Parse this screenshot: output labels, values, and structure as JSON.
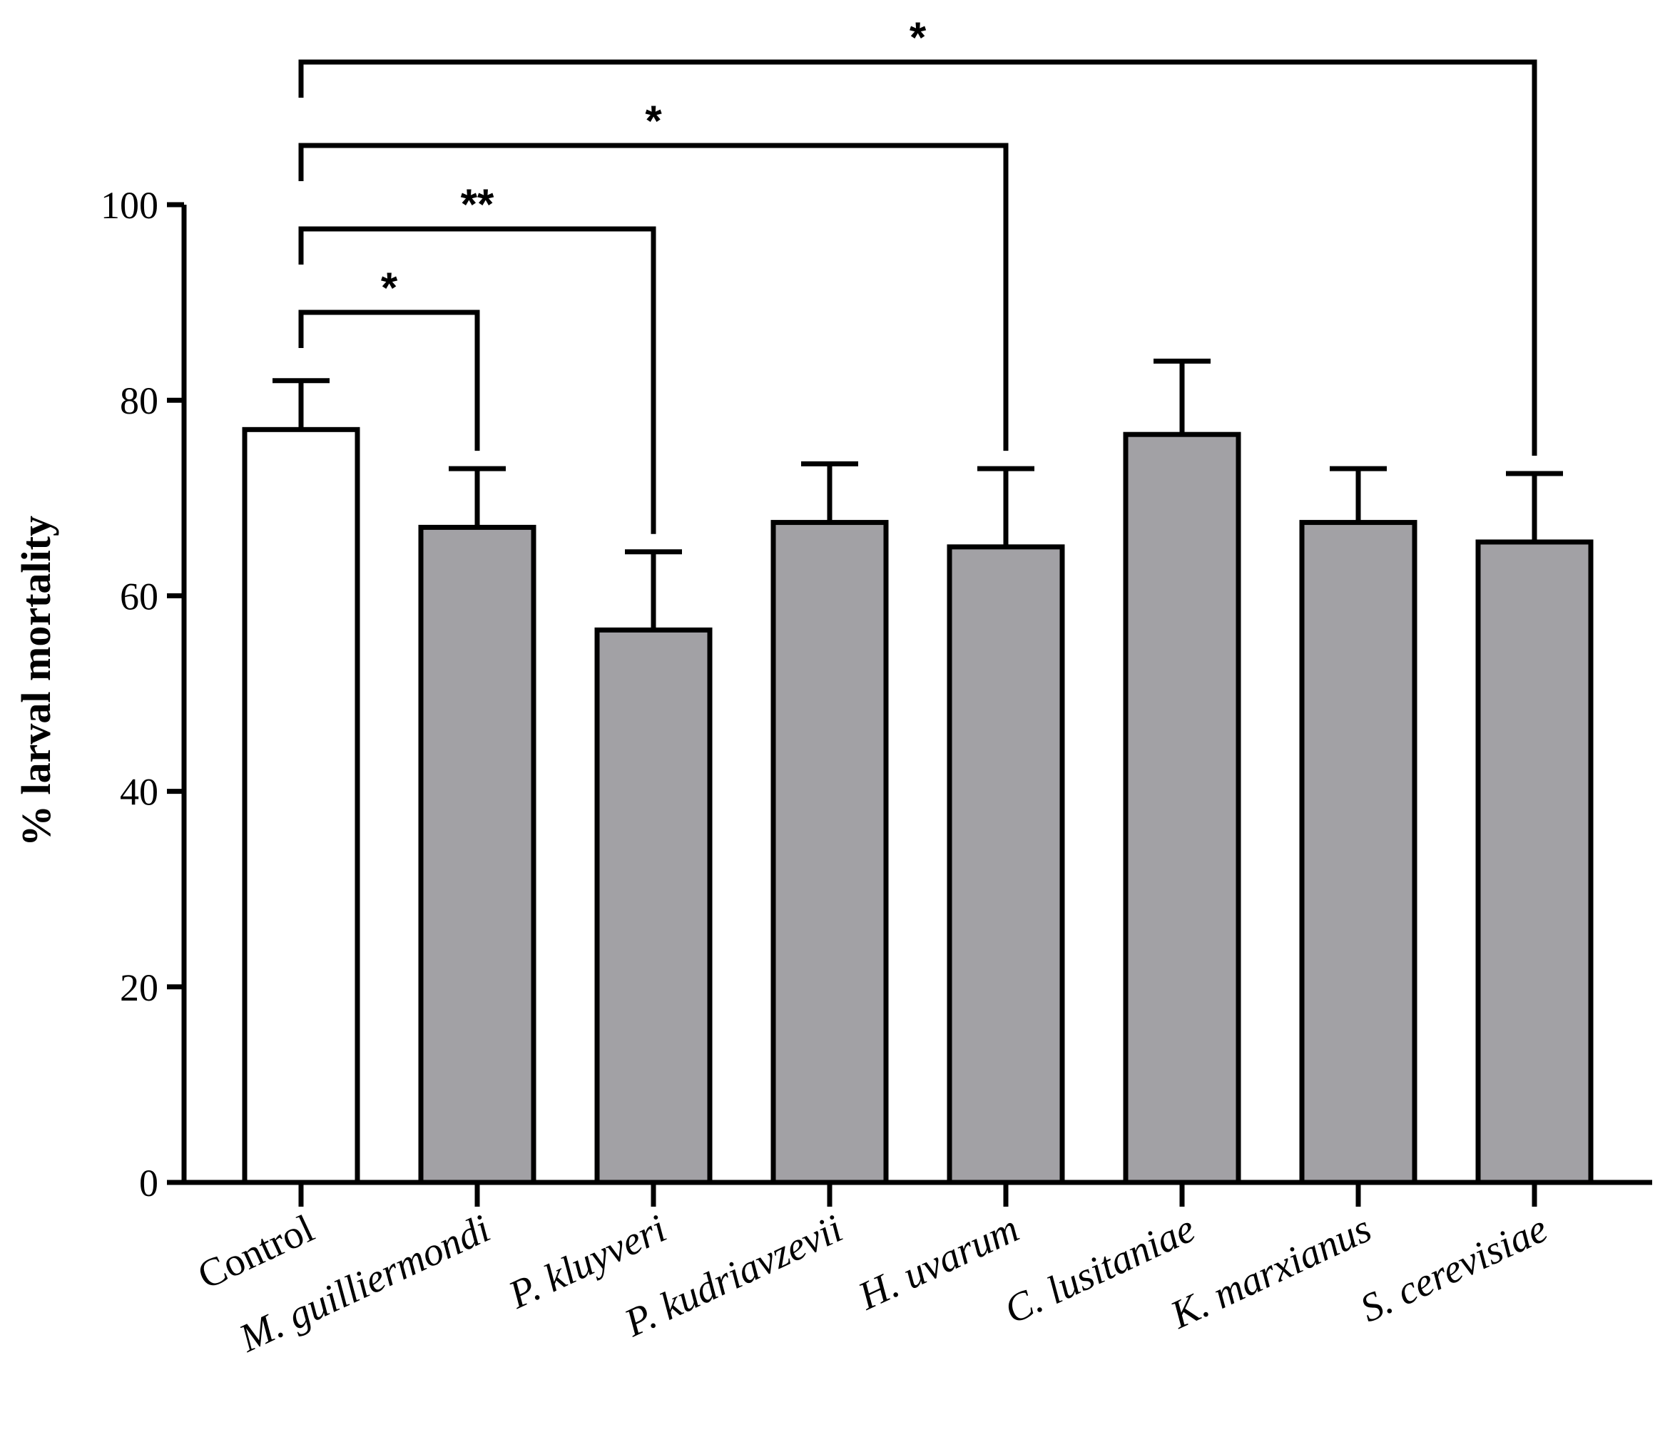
{
  "chart_data": {
    "type": "bar",
    "title": "",
    "xlabel": "",
    "ylabel": "% larval mortality",
    "ylim": [
      0,
      100
    ],
    "yticks": [
      0,
      20,
      40,
      60,
      80,
      100
    ],
    "categories": [
      "Control",
      "M. guilliermondi",
      "P. kluyveri",
      "P. kudriavzevii",
      "H. uvarum",
      "C. lusitaniae",
      "K. marxianus",
      "S. cerevisiae"
    ],
    "values": [
      77,
      67,
      56.5,
      67.5,
      65,
      76.5,
      67.5,
      65.5
    ],
    "errors": [
      5,
      6,
      8,
      6,
      8,
      7.5,
      5.5,
      7
    ],
    "colors": [
      "#ffffff",
      "#a2a1a5",
      "#a2a1a5",
      "#a2a1a5",
      "#a2a1a5",
      "#a2a1a5",
      "#a2a1a5",
      "#a2a1a5"
    ],
    "edge_color": "#000000",
    "significance": [
      {
        "from": 0,
        "to": 1,
        "label": "*"
      },
      {
        "from": 0,
        "to": 2,
        "label": "**"
      },
      {
        "from": 0,
        "to": 4,
        "label": "*"
      },
      {
        "from": 0,
        "to": 7,
        "label": "*"
      }
    ]
  }
}
